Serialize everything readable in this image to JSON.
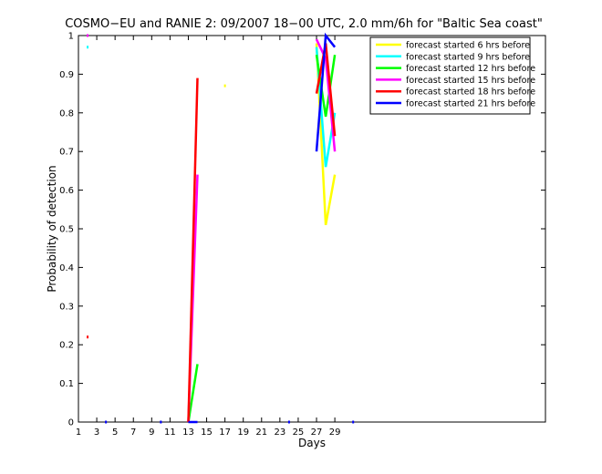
{
  "chart_data": {
    "type": "line",
    "title": "COSMO−EU and RANIE 2: 09/2007 18−00 UTC, 2.0 mm/6h for \"Baltic Sea coast\"",
    "xlabel": "Days",
    "ylabel": "Probability of detection",
    "xlim": [
      1,
      52
    ],
    "ylim": [
      0,
      1
    ],
    "x_ticks": [
      1,
      3,
      5,
      7,
      9,
      11,
      13,
      15,
      17,
      19,
      21,
      23,
      25,
      27,
      29
    ],
    "x_tick_labels": [
      "1",
      "3",
      "5",
      "7",
      "9",
      "11",
      "13",
      "15",
      "17",
      "19",
      "21",
      "23",
      "25",
      "27",
      "29"
    ],
    "y_ticks": [
      0,
      0.1,
      0.2,
      0.3,
      0.4,
      0.5,
      0.6,
      0.7,
      0.8,
      0.9,
      1
    ],
    "y_tick_labels": [
      "0",
      "0.1",
      "0.2",
      "0.3",
      "0.4",
      "0.5",
      "0.6",
      "0.7",
      "0.8",
      "0.9",
      "1"
    ],
    "legend_position": "top-right",
    "grid": false,
    "series": [
      {
        "name": "forecast started 6 hrs before",
        "color": "#ffff00",
        "segments": [
          [
            [
              17,
              0.87
            ]
          ],
          [
            [
              27,
              0.98
            ],
            [
              28,
              0.51
            ],
            [
              29,
              0.64
            ]
          ]
        ]
      },
      {
        "name": "forecast started 9 hrs before",
        "color": "#00ffff",
        "segments": [
          [
            [
              2,
              0.97
            ]
          ],
          [
            [
              27,
              0.97
            ],
            [
              28,
              0.66
            ],
            [
              29,
              0.8
            ]
          ]
        ]
      },
      {
        "name": "forecast started 12 hrs before",
        "color": "#00ff00",
        "segments": [
          [
            [
              13,
              0.0
            ],
            [
              14,
              0.15
            ]
          ],
          [
            [
              27,
              0.95
            ],
            [
              28,
              0.79
            ],
            [
              29,
              0.95
            ]
          ]
        ]
      },
      {
        "name": "forecast started 15 hrs before",
        "color": "#ff00ff",
        "segments": [
          [
            [
              2,
              1.0
            ]
          ],
          [
            [
              13,
              0.0
            ],
            [
              14,
              0.64
            ]
          ],
          [
            [
              27,
              0.99
            ],
            [
              28,
              0.94
            ],
            [
              29,
              0.7
            ]
          ]
        ]
      },
      {
        "name": "forecast started 18 hrs before",
        "color": "#ff0000",
        "segments": [
          [
            [
              2,
              0.22
            ]
          ],
          [
            [
              13,
              0.0
            ],
            [
              14,
              0.89
            ]
          ],
          [
            [
              27,
              0.85
            ],
            [
              28,
              0.98
            ],
            [
              29,
              0.74
            ]
          ]
        ]
      },
      {
        "name": "forecast started 21 hrs before",
        "color": "#0000ff",
        "segments": [
          [
            [
              4,
              0.0
            ]
          ],
          [
            [
              10,
              0.0
            ]
          ],
          [
            [
              13,
              0.0
            ],
            [
              14,
              0.0
            ]
          ],
          [
            [
              24,
              0.0
            ]
          ],
          [
            [
              27,
              0.7
            ],
            [
              28,
              1.0
            ],
            [
              29,
              0.97
            ]
          ],
          [
            [
              31,
              0.0
            ]
          ]
        ]
      }
    ]
  }
}
